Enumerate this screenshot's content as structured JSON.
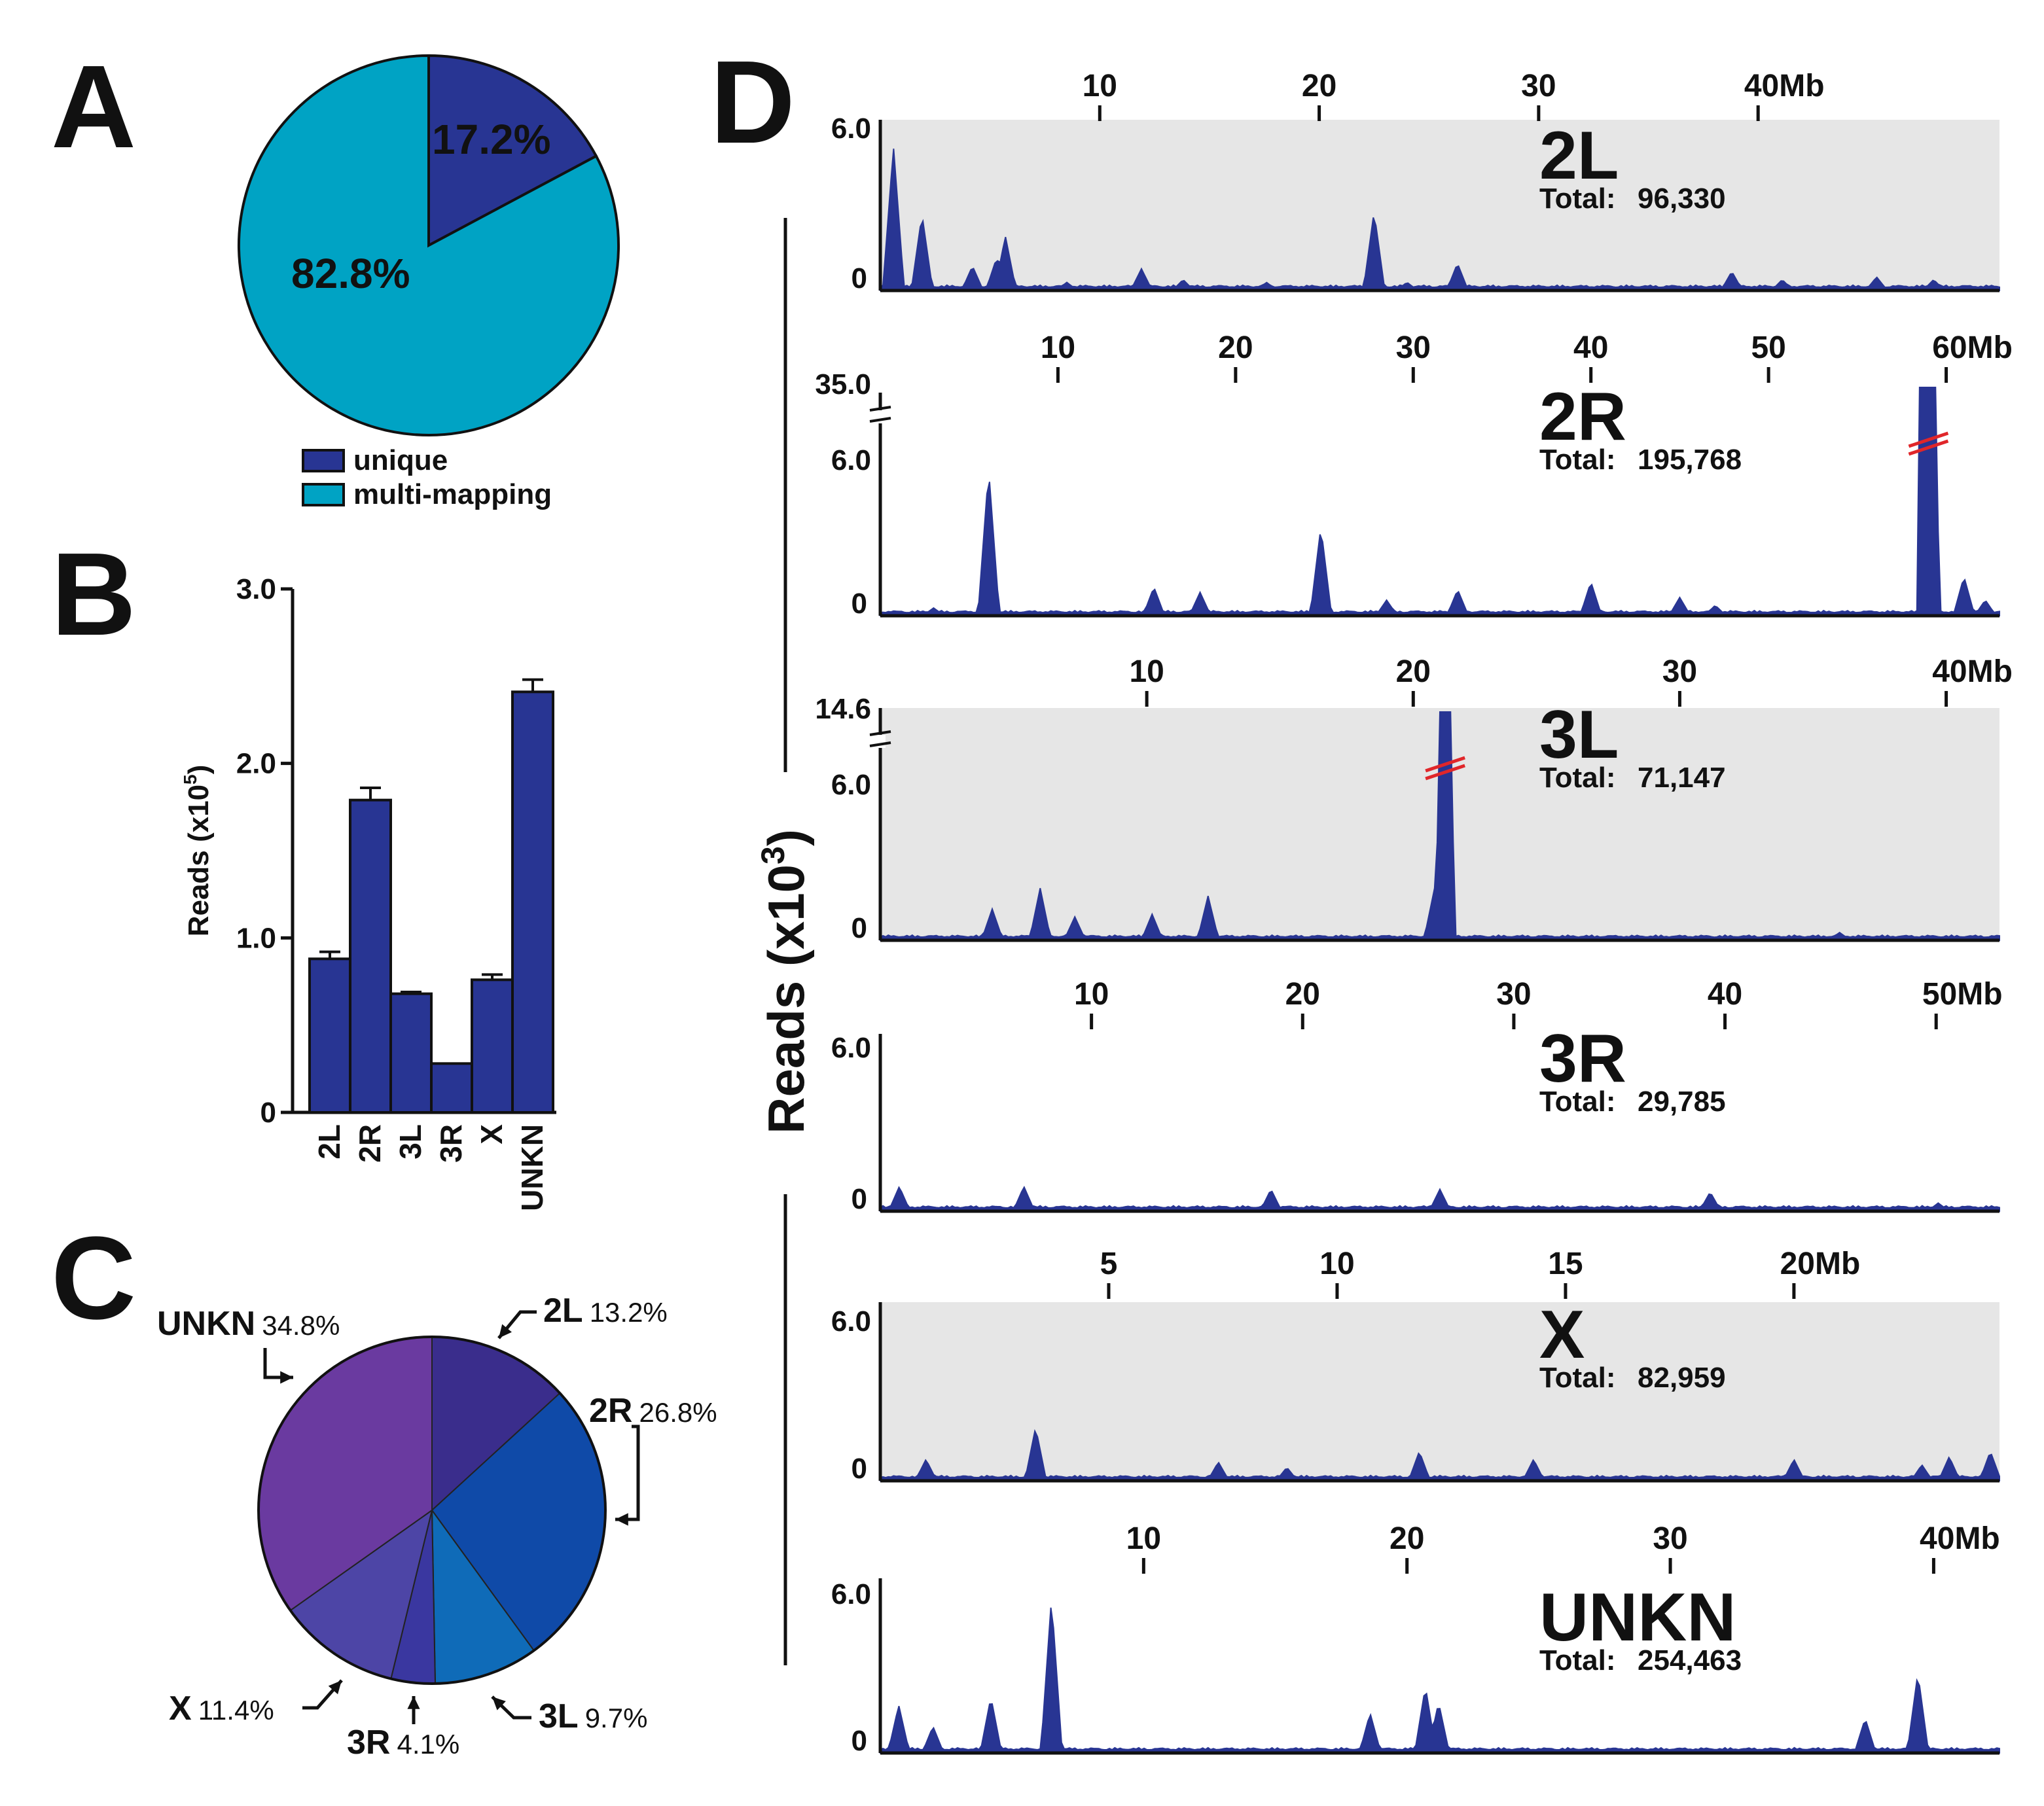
{
  "colors": {
    "unique": "#283593",
    "multi": "#00a3c4",
    "bar": "#283593",
    "track": "#283593",
    "trackBg": "#e6e6e6",
    "break": "#e0262a",
    "pie_2L": "#3a2d8c",
    "pie_2R": "#0f4aa8",
    "pie_3L": "#0f6bb8",
    "pie_3R": "#3a37a0",
    "pie_X": "#4d45a6",
    "pie_UNKN": "#6a3aa0"
  },
  "chart_data": [
    {
      "panel": "A",
      "type": "pie",
      "title": "",
      "slices": [
        {
          "label": "unique",
          "value": 17.2,
          "text": "17.2%",
          "color_key": "unique"
        },
        {
          "label": "multi-mapping",
          "value": 82.8,
          "text": "82.8%",
          "color_key": "multi"
        }
      ],
      "legend": [
        "unique",
        "multi-mapping"
      ],
      "legend_position": "bottom"
    },
    {
      "panel": "B",
      "type": "bar",
      "categories": [
        "2L",
        "2R",
        "3L",
        "3R",
        "X",
        "UNKN"
      ],
      "values": [
        0.88,
        1.79,
        0.68,
        0.28,
        0.76,
        2.41
      ],
      "errors": [
        0.04,
        0.07,
        0.01,
        0.0,
        0.03,
        0.07
      ],
      "ylabel": "Reads (x10",
      "ylabel_sup": "5",
      "ylabel_end": ")",
      "ylim": [
        0,
        3.0
      ],
      "yticks": [
        "0",
        "1.0",
        "2.0",
        "3.0"
      ]
    },
    {
      "panel": "C",
      "type": "pie",
      "slices": [
        {
          "label": "2L",
          "value": 13.2,
          "text": "13.2%",
          "color_key": "pie_2L"
        },
        {
          "label": "2R",
          "value": 26.8,
          "text": "26.8%",
          "color_key": "pie_2R"
        },
        {
          "label": "3L",
          "value": 9.7,
          "text": "9.7%",
          "color_key": "pie_3L"
        },
        {
          "label": "3R",
          "value": 4.1,
          "text": "4.1%",
          "color_key": "pie_3R"
        },
        {
          "label": "X",
          "value": 11.4,
          "text": "11.4%",
          "color_key": "pie_X"
        },
        {
          "label": "UNKN",
          "value": 34.8,
          "text": "34.8%",
          "color_key": "pie_UNKN"
        }
      ]
    },
    {
      "panel": "D",
      "type": "area",
      "ylabel": "Reads (x10",
      "ylabel_sup": "3",
      "ylabel_end": ")",
      "total_label": "Total:",
      "tracks": [
        {
          "name": "2L",
          "total": "96,330",
          "length": 51,
          "ticks": [
            10,
            20,
            30,
            40
          ],
          "tick_labels": [
            "10",
            "20",
            "30",
            "40Mb"
          ],
          "ymax_label": "6.0",
          "ymin_label": "0",
          "break_label": "",
          "shaded": true,
          "peaks": [
            [
              0.6,
              5.3
            ],
            [
              1.9,
              2.8
            ],
            [
              4.2,
              0.9
            ],
            [
              5.3,
              1.2
            ],
            [
              5.7,
              2.0
            ],
            [
              8.5,
              0.3
            ],
            [
              11.9,
              0.8
            ],
            [
              13.8,
              0.4
            ],
            [
              17.6,
              0.3
            ],
            [
              22.5,
              2.9
            ],
            [
              24.0,
              0.3
            ],
            [
              26.3,
              1.0
            ],
            [
              38.8,
              0.7
            ],
            [
              41.1,
              0.4
            ],
            [
              45.4,
              0.5
            ],
            [
              48.0,
              0.4
            ]
          ]
        },
        {
          "name": "2R",
          "total": "195,768",
          "length": 63,
          "ticks": [
            10,
            20,
            30,
            40,
            50,
            60
          ],
          "tick_labels": [
            "10",
            "20",
            "30",
            "40",
            "50",
            "60Mb"
          ],
          "ymax_label": "6.0",
          "ymin_label": "0",
          "break_label": "35.0",
          "shaded": false,
          "peaks": [
            [
              3.0,
              0.3
            ],
            [
              6.1,
              5.6
            ],
            [
              15.4,
              1.1
            ],
            [
              18.0,
              0.9
            ],
            [
              24.8,
              3.4
            ],
            [
              28.5,
              0.6
            ],
            [
              32.5,
              1.0
            ],
            [
              40.0,
              1.3
            ],
            [
              45.0,
              0.7
            ],
            [
              47.0,
              0.4
            ],
            [
              59.0,
              35.0
            ],
            [
              61.0,
              1.5
            ],
            [
              62.2,
              0.6
            ]
          ]
        },
        {
          "name": "3L",
          "total": "71,147",
          "length": 42,
          "ticks": [
            10,
            20,
            30,
            40
          ],
          "tick_labels": [
            "10",
            "20",
            "30",
            "40Mb"
          ],
          "ymax_label": "6.0",
          "ymin_label": "0",
          "break_label": "14.6",
          "shaded": true,
          "peaks": [
            [
              4.2,
              1.2
            ],
            [
              6.0,
              2.0
            ],
            [
              7.3,
              0.9
            ],
            [
              10.2,
              1.0
            ],
            [
              12.3,
              1.7
            ],
            [
              20.8,
              2.0
            ],
            [
              21.2,
              14.6
            ],
            [
              36.0,
              0.3
            ]
          ]
        },
        {
          "name": "3R",
          "total": "29,785",
          "length": 53,
          "ticks": [
            10,
            20,
            30,
            40,
            50
          ],
          "tick_labels": [
            "10",
            "20",
            "30",
            "40",
            "50Mb"
          ],
          "ymax_label": "6.0",
          "ymin_label": "0",
          "break_label": "",
          "shaded": false,
          "peaks": [
            [
              0.9,
              0.9
            ],
            [
              6.8,
              0.9
            ],
            [
              18.5,
              0.8
            ],
            [
              26.5,
              0.8
            ],
            [
              39.3,
              0.7
            ],
            [
              50.1,
              0.3
            ]
          ]
        },
        {
          "name": "X",
          "total": "82,959",
          "length": 24.5,
          "ticks": [
            5,
            10,
            15,
            20
          ],
          "tick_labels": [
            "5",
            "10",
            "15",
            "20Mb"
          ],
          "ymax_label": "6.0",
          "ymin_label": "0",
          "break_label": "",
          "shaded": true,
          "peaks": [
            [
              1.0,
              0.8
            ],
            [
              3.4,
              2.0
            ],
            [
              7.4,
              0.7
            ],
            [
              8.9,
              0.5
            ],
            [
              11.8,
              1.1
            ],
            [
              14.3,
              0.8
            ],
            [
              20.0,
              0.8
            ],
            [
              22.8,
              0.6
            ],
            [
              23.4,
              0.9
            ],
            [
              24.3,
              1.1
            ]
          ]
        },
        {
          "name": "UNKN",
          "total": "254,463",
          "length": 42.5,
          "ticks": [
            10,
            20,
            30,
            40
          ],
          "tick_labels": [
            "10",
            "20",
            "30",
            "40Mb"
          ],
          "ymax_label": "6.0",
          "ymin_label": "0",
          "break_label": "",
          "shaded": false,
          "peaks": [
            [
              0.7,
              1.8
            ],
            [
              2.0,
              1.0
            ],
            [
              4.2,
              2.1
            ],
            [
              6.5,
              5.8
            ],
            [
              18.6,
              1.5
            ],
            [
              20.7,
              2.5
            ],
            [
              21.2,
              1.9
            ],
            [
              37.4,
              1.3
            ],
            [
              39.4,
              3.0
            ]
          ]
        }
      ]
    }
  ],
  "panels": {
    "A": "A",
    "B": "B",
    "C": "C",
    "D": "D"
  }
}
